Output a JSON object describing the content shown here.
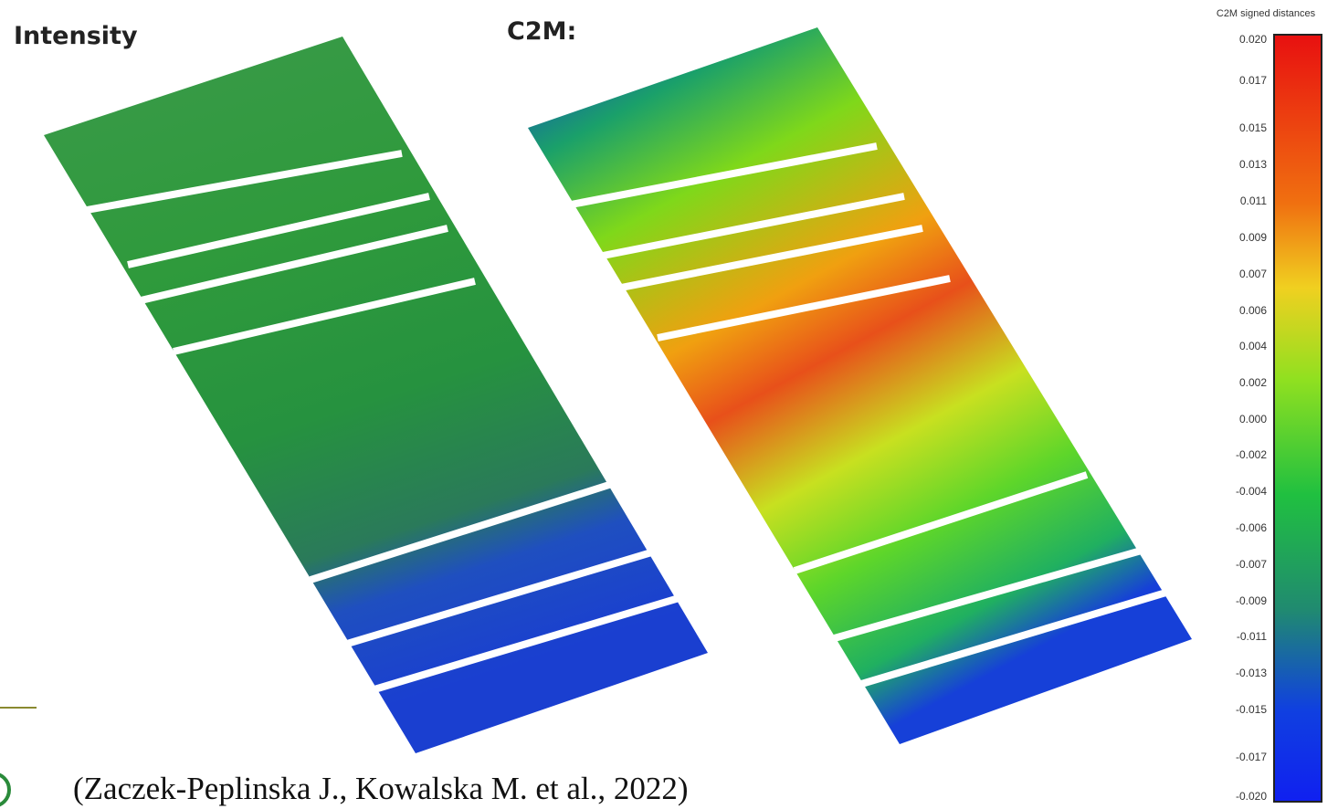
{
  "panels": [
    {
      "title": "Intensity"
    },
    {
      "title": "C2M:"
    }
  ],
  "colorbar": {
    "title": "C2M signed distances",
    "ticks": [
      "0.020",
      "0.017",
      "0.015",
      "0.013",
      "0.011",
      "0.009",
      "0.007",
      "0.006",
      "0.004",
      "0.002",
      "0.000",
      "-0.002",
      "-0.004",
      "-0.006",
      "-0.007",
      "-0.009",
      "-0.011",
      "-0.013",
      "-0.015",
      "-0.017",
      "-0.020"
    ]
  },
  "citation": "(Zaczek-Peplinska J., Kowalska M. et al., 2022)"
}
